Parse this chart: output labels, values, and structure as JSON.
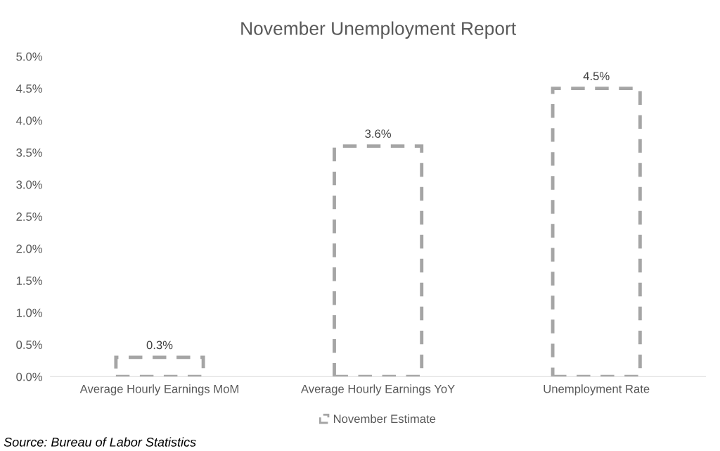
{
  "chart_data": {
    "type": "bar",
    "title": "November Unemployment Report",
    "categories": [
      "Average Hourly Earnings MoM",
      "Average Hourly Earnings YoY",
      "Unemployment Rate"
    ],
    "series": [
      {
        "name": "November Estimate",
        "color": "#a5a5a5",
        "values": [
          0.3,
          3.6,
          4.5
        ],
        "value_labels": [
          "0.3%",
          "3.6%",
          "4.5%"
        ]
      }
    ],
    "line_style": "dashed",
    "ylim": [
      0,
      5
    ],
    "yticks": [
      {
        "value": 0,
        "label": "0.0%"
      },
      {
        "value": 0.5,
        "label": "0.5%"
      },
      {
        "value": 1,
        "label": "1.0%"
      },
      {
        "value": 1.5,
        "label": "1.5%"
      },
      {
        "value": 2,
        "label": "2.0%"
      },
      {
        "value": 2.5,
        "label": "2.5%"
      },
      {
        "value": 3,
        "label": "3.0%"
      },
      {
        "value": 3.5,
        "label": "3.5%"
      },
      {
        "value": 4,
        "label": "4.0%"
      },
      {
        "value": 4.5,
        "label": "4.5%"
      },
      {
        "value": 5,
        "label": "5.0%"
      }
    ],
    "legend": "bottom",
    "annotations": [
      "Source: Bureau of Labor Statistics"
    ]
  }
}
